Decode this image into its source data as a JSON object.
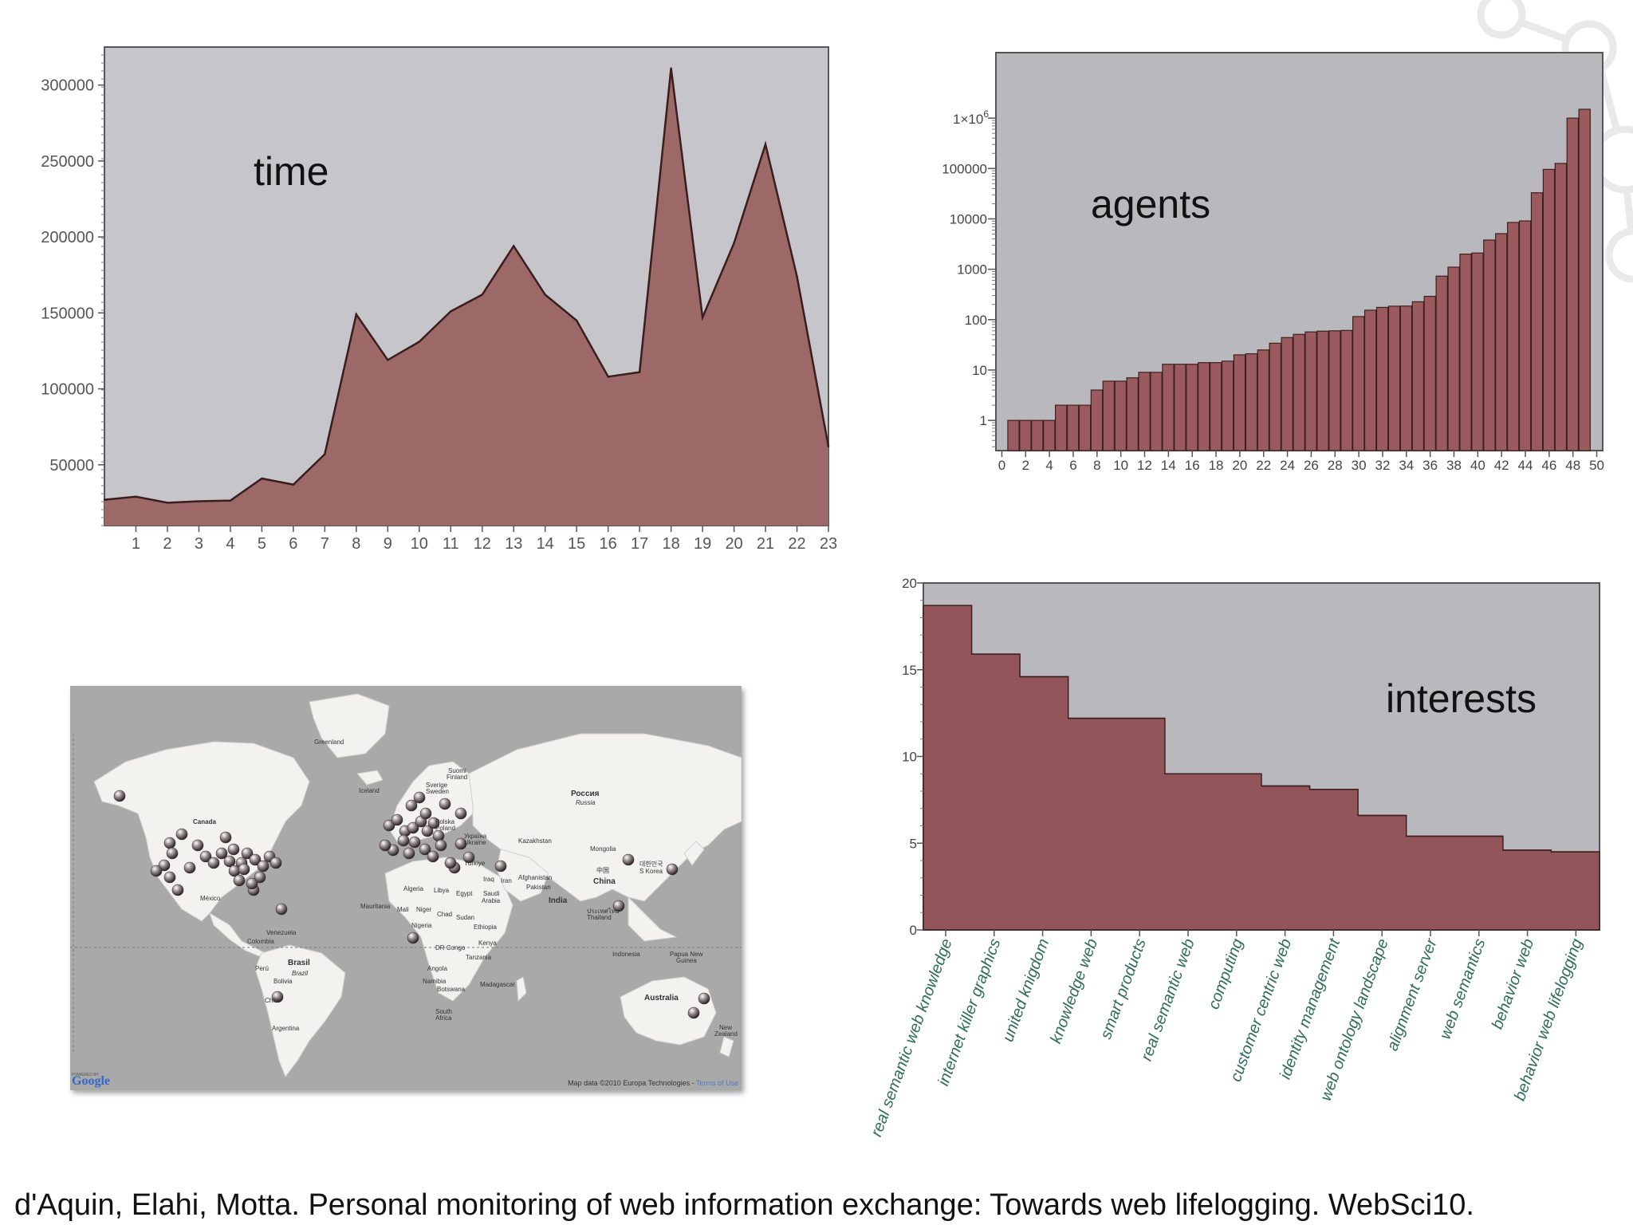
{
  "chart_data": [
    {
      "type": "area",
      "title": "time",
      "x": [
        0,
        1,
        2,
        3,
        4,
        5,
        6,
        7,
        8,
        9,
        10,
        11,
        12,
        13,
        14,
        15,
        16,
        17,
        18,
        19,
        20,
        21,
        22,
        23
      ],
      "xticks": [
        "1",
        "2",
        "3",
        "4",
        "5",
        "6",
        "7",
        "8",
        "9",
        "10",
        "11",
        "12",
        "13",
        "14",
        "15",
        "16",
        "17",
        "18",
        "19",
        "20",
        "21",
        "22",
        "23"
      ],
      "values": [
        27000,
        29000,
        25000,
        26000,
        26500,
        41000,
        37000,
        57000,
        149000,
        119000,
        131000,
        151000,
        162000,
        194000,
        162000,
        145000,
        108000,
        111000,
        311000,
        147000,
        196000,
        261000,
        174000,
        62000
      ],
      "yticks": [
        "300000",
        "250000",
        "200000",
        "150000",
        "100000",
        "50000"
      ],
      "ylim": [
        10000,
        325000
      ],
      "fill": "#9c6868",
      "background": "#c6c5c9"
    },
    {
      "type": "bar",
      "title": "agents",
      "yscale": "log",
      "values": [
        1,
        1,
        1,
        1,
        2,
        2,
        2,
        4,
        6,
        6,
        7,
        9,
        9,
        13,
        13,
        13,
        14,
        14,
        15,
        20,
        21,
        25,
        34,
        44,
        51,
        57,
        59,
        60,
        61,
        115,
        154,
        175,
        185,
        186,
        226,
        290,
        730,
        1100,
        2000,
        2100,
        3800,
        5100,
        8500,
        9100,
        33000,
        96000,
        126000,
        1000000,
        1500000
      ],
      "xticks": [
        "0",
        "2",
        "4",
        "6",
        "8",
        "10",
        "12",
        "14",
        "16",
        "18",
        "20",
        "22",
        "24",
        "26",
        "28",
        "30",
        "32",
        "34",
        "36",
        "38",
        "40",
        "42",
        "44",
        "46",
        "48",
        "50"
      ],
      "yticks": [
        "1x10^6",
        "100000",
        "10000",
        "1000",
        "100",
        "10",
        "1"
      ],
      "fill": "#9a5a5e",
      "background": "#b9b8bc"
    },
    {
      "type": "area",
      "title": "interests",
      "categories": [
        "real semantic web knowledge",
        "internet killer graphics",
        "united knigdom",
        "knowledge web",
        "smart products",
        "real semantic web",
        "computing",
        "customer centric web",
        "identity management",
        "web ontology landscape",
        "alignment server",
        "web semantics",
        "behavior web",
        "behavior web lifelogging"
      ],
      "steps": [
        18.7,
        15.9,
        14.6,
        12.2,
        12.2,
        9.0,
        9.0,
        8.3,
        8.1,
        6.6,
        5.4,
        5.4,
        4.6,
        4.5
      ],
      "yticks": [
        "20",
        "15",
        "10",
        "5",
        "0"
      ],
      "ylim": [
        0,
        20
      ],
      "fill": "#925559",
      "background": "#b9b8bc"
    }
  ],
  "map": {
    "labels": {
      "greenland": "Greenland",
      "iceland": "Iceland",
      "canada": "Canada",
      "mexico": "México",
      "venezuela": "Venezuela",
      "colombia": "Colombia",
      "peru": "Perú",
      "brasil": "Brasil",
      "brazil": "Brazil",
      "bolivia": "Bolivia",
      "chile": "Chile",
      "argentina": "Argentina",
      "suomi": "Suomi",
      "finland": "Finland",
      "sverige": "Sverige",
      "sweden": "Sweden",
      "polska": "Polska",
      "poland": "Poland",
      "ukraina": "Україна",
      "ukraine": "Ukraine",
      "turkiye": "Türkiye",
      "rossiya": "Россия",
      "russia": "Russia",
      "kazakhstan": "Kazakhstan",
      "mongolia": "Mongolia",
      "china_cn": "中国",
      "china": "China",
      "korea_kr": "대한민국",
      "s_korea": "S Korea",
      "afghanistan": "Afghanistan",
      "pakistan": "Pakistan",
      "india": "India",
      "iraq": "Iraq",
      "iran": "Iran",
      "egypt": "Egypt",
      "saudi": "Saudi",
      "arabia": "Arabia",
      "algeria": "Algeria",
      "libya": "Libya",
      "mauritania": "Mauritania",
      "mali": "Mali",
      "niger": "Niger",
      "chad": "Chad",
      "sudan": "Sudan",
      "nigeria": "Nigeria",
      "ethiopia": "Ethiopia",
      "kenya": "Kenya",
      "dr_congo": "DR Congo",
      "tanzania": "Tanzania",
      "angola": "Angola",
      "namibia": "Namibia",
      "botswana": "Botswana",
      "madagascar": "Madagascar",
      "south": "South",
      "africa": "Africa",
      "thailand_th": "ประเทศไทย",
      "thailand": "Thailand",
      "indonesia": "Indonesia",
      "papua": "Papua New",
      "guinea": "Guinea",
      "australia": "Australia",
      "new": "New",
      "zealand": "Zealand"
    },
    "powered_by": "POWERED BY",
    "google": "Google",
    "credit": "Map data ©2010 Europa Technologies - ",
    "terms": "Terms of Use"
  },
  "citation": "d'Aquin, Elahi, Motta. Personal monitoring of web information exchange: Towards web lifelogging. WebSci10."
}
